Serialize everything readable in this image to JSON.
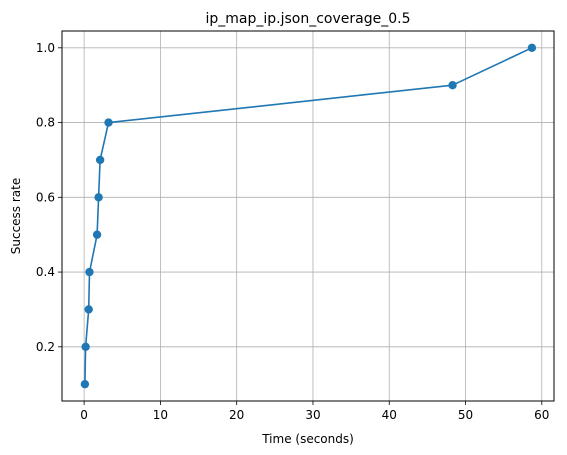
{
  "chart_data": {
    "type": "line",
    "title": "ip_map_ip.json_coverage_0.5",
    "xlabel": "Time (seconds)",
    "ylabel": "Success rate",
    "xlim": [
      -2.9,
      61.6
    ],
    "ylim": [
      0.055,
      1.045
    ],
    "xticks": [
      0,
      10,
      20,
      30,
      40,
      50,
      60
    ],
    "yticks": [
      0.2,
      0.4,
      0.6,
      0.8,
      1.0
    ],
    "xtick_labels": [
      "0",
      "10",
      "20",
      "30",
      "40",
      "50",
      "60"
    ],
    "ytick_labels": [
      "0.2",
      "0.4",
      "0.6",
      "0.8",
      "1.0"
    ],
    "grid": true,
    "legend": "none",
    "series": [
      {
        "color": "#1f77b4",
        "marker": "circle",
        "x": [
          0.1,
          0.2,
          0.6,
          0.7,
          1.7,
          1.9,
          2.1,
          3.2,
          48.3,
          58.7
        ],
        "y": [
          0.1,
          0.2,
          0.3,
          0.4,
          0.5,
          0.6,
          0.7,
          0.8,
          0.9,
          1.0
        ]
      }
    ]
  }
}
